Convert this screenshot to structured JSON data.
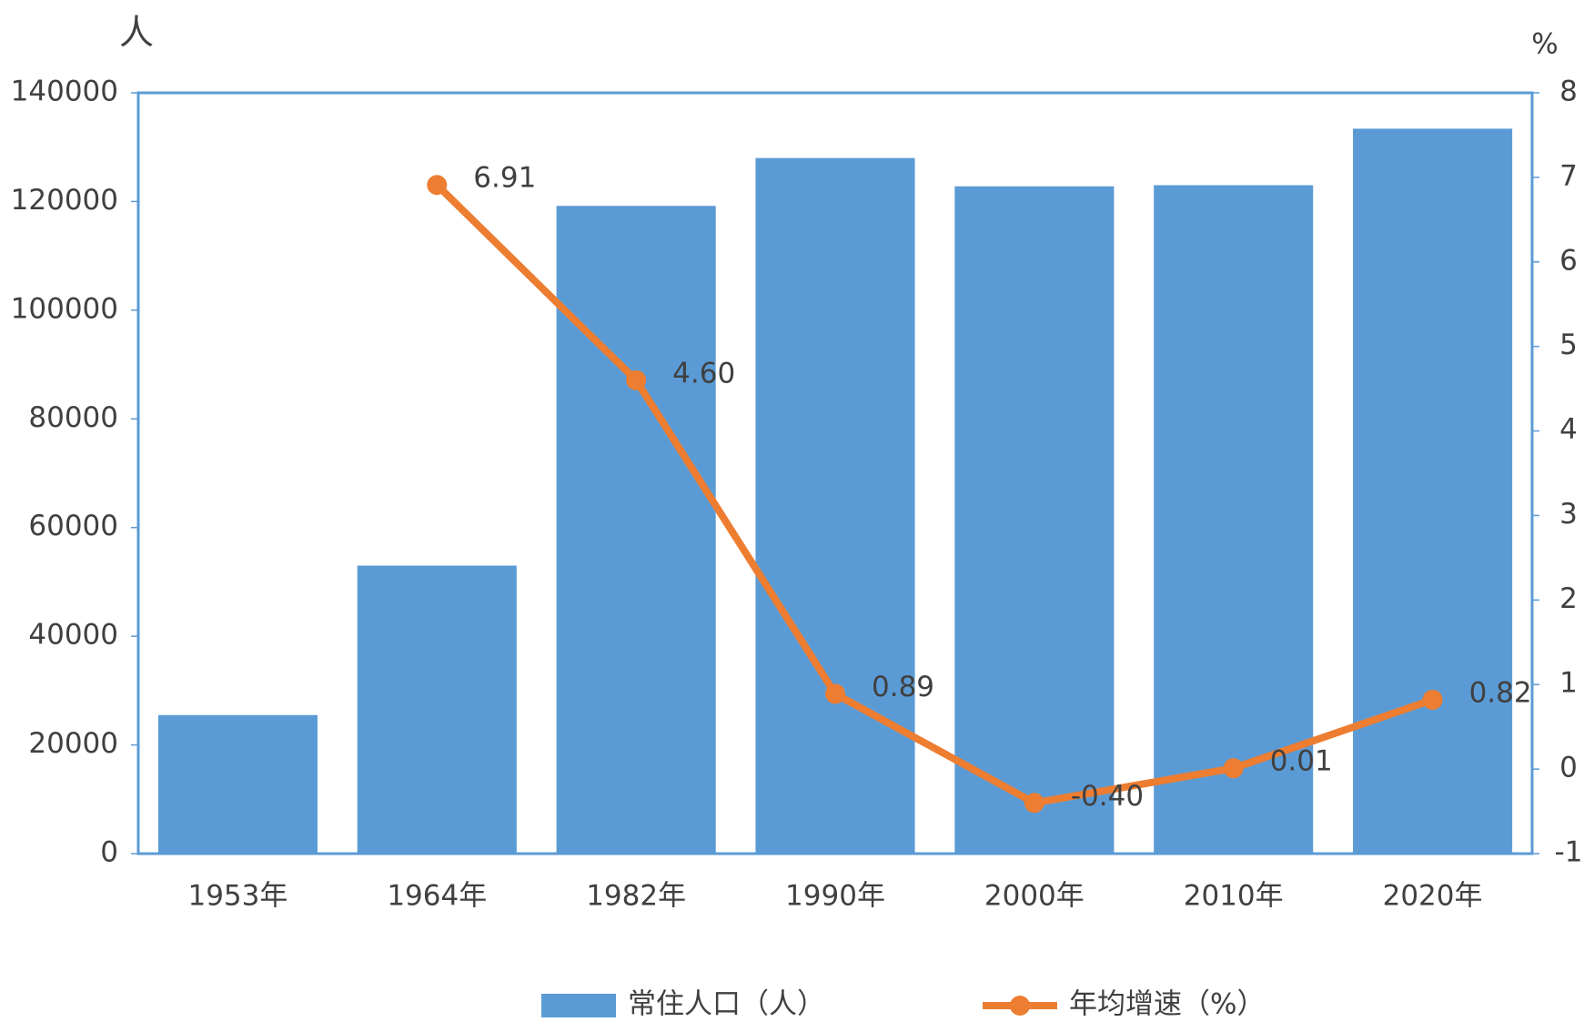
{
  "chart_data": {
    "type": "bar_line",
    "y_axis_label": "人",
    "y2_axis_label": "%",
    "categories": [
      "1953年",
      "1964年",
      "1982年",
      "1990年",
      "2000年",
      "2010年",
      "2020年"
    ],
    "series": [
      {
        "name": "常住人口（人）",
        "type": "bar",
        "color": "#5b9bd5",
        "values": [
          25500,
          53000,
          119200,
          128000,
          122800,
          123000,
          133400
        ]
      },
      {
        "name": "年均增速（%）",
        "type": "line",
        "axis": "y2",
        "color": "#ed7d31",
        "values": [
          null,
          6.91,
          4.6,
          0.89,
          -0.4,
          0.01,
          0.82
        ],
        "value_labels": [
          null,
          "6.91",
          "4.60",
          "0.89",
          "-0.40",
          "0.01",
          "0.82"
        ]
      }
    ],
    "ylim": [
      0,
      140000
    ],
    "yticks": [
      0,
      20000,
      40000,
      60000,
      80000,
      100000,
      120000,
      140000
    ],
    "y2lim": [
      -1,
      8
    ],
    "y2ticks": [
      -1,
      0,
      1,
      2,
      3,
      4,
      5,
      6,
      7,
      8
    ],
    "legend": "bottom"
  }
}
